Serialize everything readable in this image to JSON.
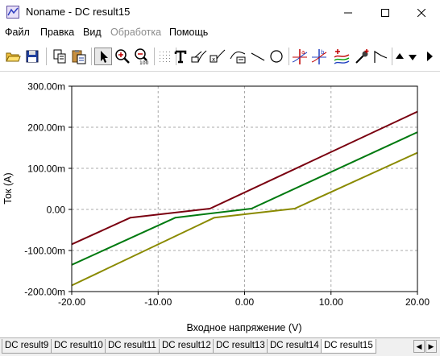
{
  "window": {
    "title": "Noname - DC result15",
    "controls": {
      "minimize": "─",
      "maximize": "☐",
      "close": "✕"
    }
  },
  "menu": {
    "items": [
      {
        "label": "Файл",
        "enabled": true
      },
      {
        "label": "Правка",
        "enabled": true
      },
      {
        "label": "Вид",
        "enabled": true
      },
      {
        "label": "Обработка",
        "enabled": false
      },
      {
        "label": "Помощь",
        "enabled": true
      }
    ]
  },
  "toolbar": {
    "tools": [
      "open-icon",
      "save-icon",
      "copy-icon",
      "paste-icon",
      "pointer-icon",
      "zoom-in-icon",
      "zoom-out-icon",
      "grid-icon",
      "text-icon",
      "curve-label-icon",
      "curve-label-2-icon",
      "legend-icon",
      "line-icon",
      "circle-icon",
      "cursor-a-icon",
      "cursor-b-icon",
      "add-curve-icon",
      "probe-icon",
      "curve-style-icon",
      "scroll-up-icon",
      "scroll-down-icon",
      "scroll-right-icon"
    ],
    "active_tool": "pointer-icon"
  },
  "chart_data": {
    "type": "line",
    "xlabel": "Входное напряжение (V)",
    "ylabel": "Ток (A)",
    "xlim": [
      -20,
      20
    ],
    "ylim": [
      -200,
      300
    ],
    "x_ticks": [
      "-20.00",
      "-10.00",
      "0.00",
      "10.00",
      "20.00"
    ],
    "y_ticks": [
      "300.00m",
      "200.00m",
      "100.00m",
      "0.00",
      "-100.00m",
      "-200.00m"
    ],
    "grid": true,
    "series": [
      {
        "color": "#7a0010",
        "points": [
          [
            -20,
            -85
          ],
          [
            -13.2,
            -20
          ],
          [
            -4,
            2
          ],
          [
            20,
            238
          ]
        ]
      },
      {
        "color": "#007a10",
        "points": [
          [
            -20,
            -135
          ],
          [
            -8,
            -20
          ],
          [
            0.8,
            2
          ],
          [
            20,
            188
          ]
        ]
      },
      {
        "color": "#8a8a00",
        "points": [
          [
            -20,
            -185
          ],
          [
            -3.5,
            -20
          ],
          [
            5.8,
            2
          ],
          [
            20,
            138
          ]
        ]
      }
    ]
  },
  "tabs": {
    "items": [
      "DC result9",
      "DC result10",
      "DC result11",
      "DC result12",
      "DC result13",
      "DC result14",
      "DC result15"
    ],
    "active_index": 6,
    "nav": {
      "left": "◀",
      "right": "▶"
    }
  }
}
